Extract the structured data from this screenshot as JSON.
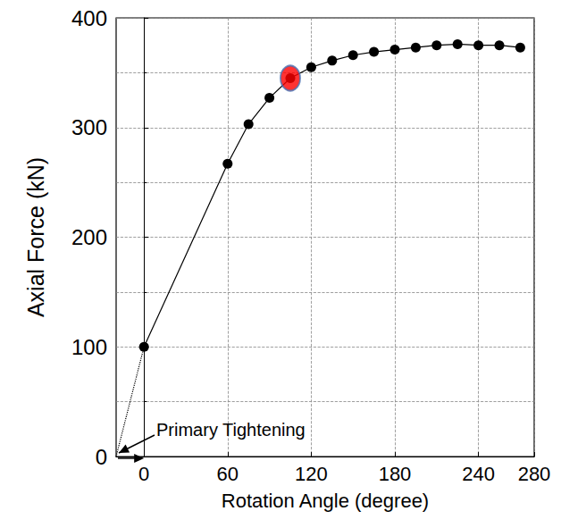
{
  "chart_data": {
    "type": "line",
    "xlabel": "Rotation Angle (degree)",
    "ylabel": "Axial Force (kN)",
    "x": [
      0,
      60,
      75,
      90,
      105,
      120,
      135,
      150,
      165,
      180,
      195,
      210,
      225,
      240,
      255,
      270
    ],
    "values": [
      100,
      267,
      303,
      327,
      345,
      355,
      361,
      366,
      369,
      371,
      373,
      375,
      376,
      375,
      375,
      373
    ],
    "color": "#000000",
    "marker": "circle",
    "line_style": "solid",
    "xlim": [
      -20,
      280
    ],
    "xticks": [
      0,
      60,
      120,
      180,
      240,
      280
    ],
    "ylim": [
      0,
      400
    ],
    "yticks": [
      0,
      100,
      200,
      300,
      400
    ],
    "grid": true,
    "highlight": {
      "x": 105,
      "value": 345,
      "color": "#ff0000"
    },
    "extension": {
      "x": [
        -20,
        0
      ],
      "values": [
        0,
        100
      ],
      "line_style": "dotted"
    },
    "annotations": [
      {
        "text": "Primary Tightening",
        "x": -20,
        "y": 0
      }
    ]
  }
}
